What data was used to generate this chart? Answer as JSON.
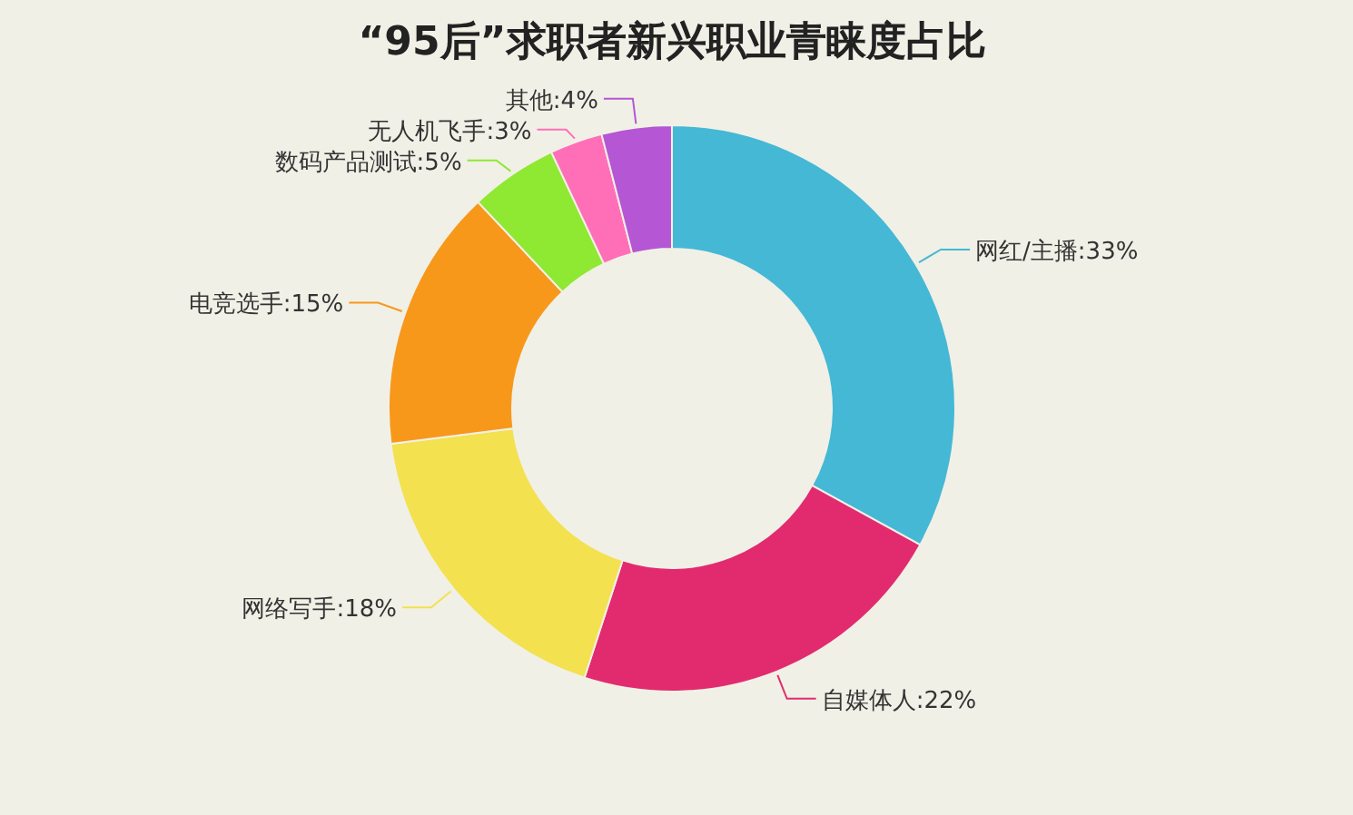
{
  "chart_data": {
    "type": "donut",
    "title": "“95后”求职者新兴职业青睐度占比",
    "categories": [
      "网红/主播",
      "自媒体人",
      "网络写手",
      "电竞选手",
      "数码产品测试",
      "无人机飞手",
      "其他"
    ],
    "values": [
      33,
      22,
      18,
      15,
      5,
      3,
      4
    ],
    "value_labels": [
      "33%",
      "22%",
      "18%",
      "15%",
      "5%",
      "3%",
      "4%"
    ],
    "colors": [
      "#45b8d6",
      "#e22b6f",
      "#f3e14f",
      "#f7981b",
      "#8fe832",
      "#ff6fb8",
      "#b556d4"
    ]
  }
}
